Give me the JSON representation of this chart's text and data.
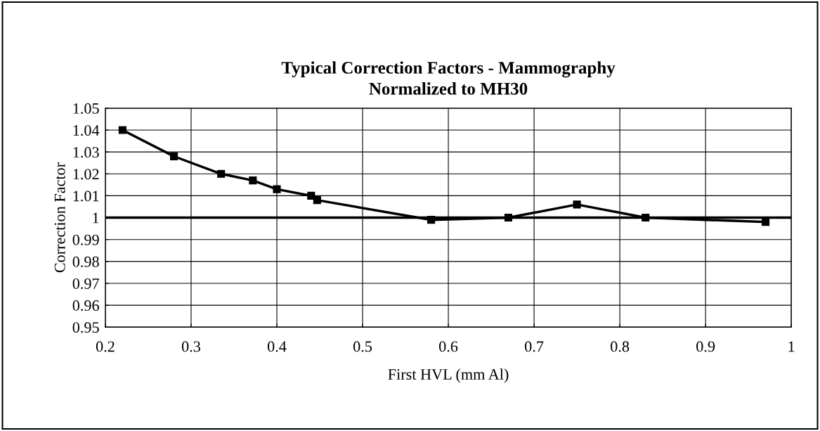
{
  "chart_data": {
    "type": "line",
    "title": "Typical Correction Factors - Mammography\nNormalized to MH30",
    "xlabel": "First HVL (mm Al)",
    "ylabel": "Correction Factor",
    "x": [
      0.22,
      0.28,
      0.335,
      0.372,
      0.4,
      0.44,
      0.447,
      0.58,
      0.67,
      0.75,
      0.83,
      0.97
    ],
    "series": [
      {
        "color": "#000000",
        "values": [
          1.04,
          1.028,
          1.02,
          1.017,
          1.013,
          1.01,
          1.008,
          0.999,
          1.0,
          1.006,
          1.0,
          0.998
        ]
      }
    ],
    "xlim": [
      0.2,
      1.0
    ],
    "xticks": [
      0.2,
      0.3,
      0.4,
      0.5,
      0.6,
      0.7,
      0.8,
      0.9,
      1
    ],
    "ylim": [
      0.95,
      1.05
    ],
    "yticks": [
      0.95,
      0.96,
      0.97,
      0.98,
      0.99,
      1,
      1.01,
      1.02,
      1.03,
      1.04,
      1.05
    ],
    "ref_lines": [
      {
        "axis": "y",
        "value": 1,
        "color": "#000000",
        "line_style": "solid"
      }
    ],
    "grid": true,
    "legend": false,
    "marker": "square",
    "line_style": "solid"
  }
}
